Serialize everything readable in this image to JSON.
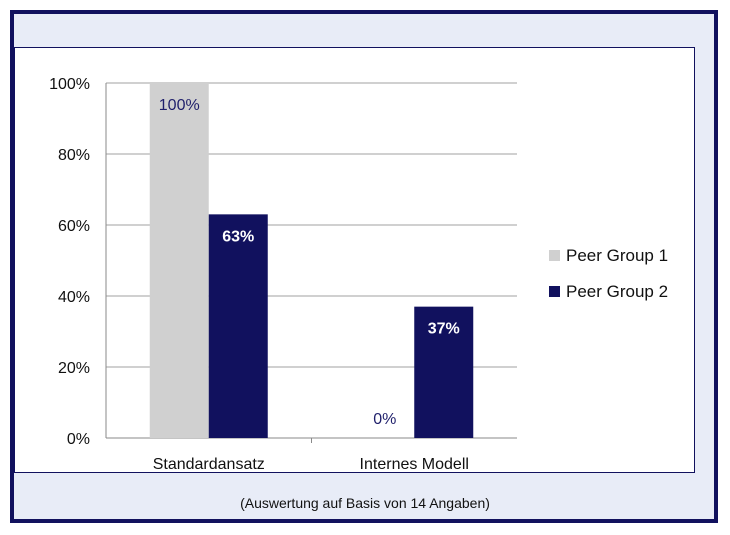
{
  "chart_data": {
    "type": "bar",
    "categories": [
      "Standardansatz",
      "Internes Modell"
    ],
    "series": [
      {
        "name": "Peer Group 1",
        "values": [
          100,
          0
        ],
        "labels": [
          "100%",
          "0%"
        ],
        "color": "#d0d0d0",
        "label_color": "#1f1f6b"
      },
      {
        "name": "Peer Group 2",
        "values": [
          63,
          37
        ],
        "labels": [
          "63%",
          "37%"
        ],
        "color": "#11115e",
        "label_color": "#ffffff"
      }
    ],
    "ylim": [
      0,
      100
    ],
    "yticks": [
      "0%",
      "20%",
      "40%",
      "60%",
      "80%",
      "100%"
    ],
    "grid": true,
    "legend_position": "right"
  },
  "footnote": "(Auswertung auf Basis von 14 Angaben)"
}
